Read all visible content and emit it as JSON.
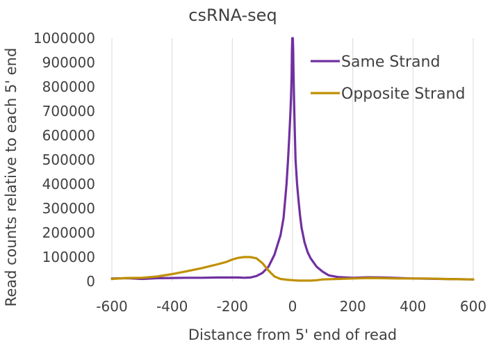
{
  "chart_data": {
    "type": "line",
    "title": "csRNA-seq",
    "xlabel": "Distance from 5' end of read",
    "ylabel": "Read counts relative to each 5' end",
    "xlim": [
      -600,
      600
    ],
    "ylim": [
      0,
      1000000
    ],
    "x_ticks": [
      "-600",
      "-400",
      "-200",
      "0",
      "200",
      "400",
      "600"
    ],
    "y_ticks": [
      "0",
      "100000",
      "200000",
      "300000",
      "400000",
      "500000",
      "600000",
      "700000",
      "800000",
      "900000",
      "1000000"
    ],
    "grid": "vertical",
    "legend_position": "top-right",
    "colors": {
      "same": "#7030a0",
      "opposite": "#bf9000",
      "grid": "#d9d9d9",
      "text": "#404040"
    },
    "series": [
      {
        "name": "Same Strand",
        "x": [
          -600,
          -550,
          -500,
          -450,
          -400,
          -350,
          -300,
          -250,
          -200,
          -180,
          -160,
          -140,
          -120,
          -100,
          -80,
          -60,
          -50,
          -40,
          -30,
          -25,
          -20,
          -15,
          -10,
          -7,
          -5,
          -3,
          -2,
          -1,
          0,
          1,
          2,
          3,
          5,
          7,
          10,
          15,
          20,
          25,
          30,
          40,
          50,
          60,
          80,
          100,
          120,
          150,
          200,
          250,
          300,
          350,
          400,
          450,
          500,
          550,
          600
        ],
        "values": [
          12000,
          13000,
          10000,
          13000,
          14000,
          15000,
          15000,
          16000,
          16000,
          16000,
          15000,
          16000,
          22000,
          35000,
          60000,
          110000,
          150000,
          190000,
          260000,
          330000,
          400000,
          500000,
          620000,
          700000,
          760000,
          850000,
          950000,
          1000000,
          1000000,
          1000000,
          950000,
          870000,
          740000,
          640000,
          500000,
          400000,
          330000,
          270000,
          220000,
          160000,
          120000,
          95000,
          60000,
          40000,
          25000,
          18000,
          15000,
          17000,
          16000,
          14000,
          12000,
          11000,
          10000,
          9000,
          8000
        ]
      },
      {
        "name": "Opposite Strand",
        "x": [
          -600,
          -550,
          -500,
          -450,
          -400,
          -350,
          -300,
          -250,
          -220,
          -200,
          -180,
          -160,
          -140,
          -120,
          -100,
          -80,
          -60,
          -40,
          -20,
          0,
          20,
          40,
          60,
          80,
          100,
          150,
          200,
          250,
          300,
          350,
          400,
          450,
          500,
          550,
          600
        ],
        "values": [
          10000,
          14000,
          15000,
          20000,
          30000,
          42000,
          55000,
          70000,
          80000,
          90000,
          97000,
          100000,
          100000,
          95000,
          75000,
          45000,
          20000,
          10000,
          7000,
          5000,
          3000,
          3000,
          3000,
          5000,
          8000,
          10000,
          12000,
          14000,
          13000,
          12000,
          12000,
          12000,
          10000,
          9000,
          8000
        ]
      }
    ]
  }
}
